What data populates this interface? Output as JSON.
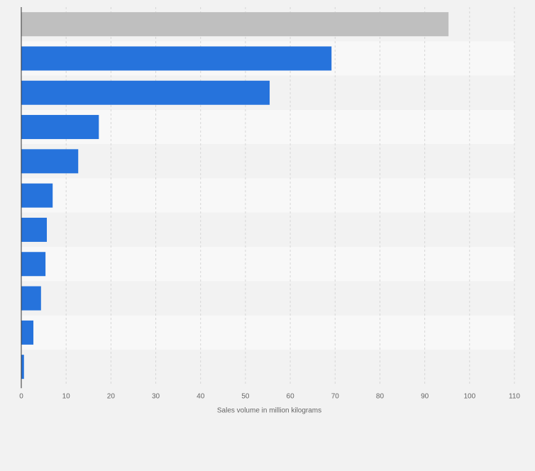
{
  "chart_data": {
    "type": "bar",
    "orientation": "horizontal",
    "title": "",
    "xlabel": "Sales volume in million kilograms",
    "ylabel": "",
    "xlim": [
      0,
      110
    ],
    "x_ticks": [
      "0",
      "10",
      "20",
      "30",
      "40",
      "50",
      "60",
      "70",
      "80",
      "90",
      "100",
      "110"
    ],
    "grid": true,
    "categories": [
      "",
      "",
      "",
      "",
      "",
      "",
      "",
      "",
      "",
      "",
      ""
    ],
    "values": [
      95.3,
      69.2,
      55.4,
      17.3,
      12.7,
      7.0,
      5.7,
      5.4,
      4.4,
      2.7,
      0.6
    ],
    "bar_colors": [
      "#bfbfbf",
      "#2673dc",
      "#2673dc",
      "#2673dc",
      "#2673dc",
      "#2673dc",
      "#2673dc",
      "#2673dc",
      "#2673dc",
      "#2673dc",
      "#2673dc"
    ]
  },
  "colors": {
    "background": "#f2f2f2",
    "band_light": "#f8f8f8",
    "band_dark": "#f2f2f2",
    "grid": "#d6d6d6",
    "axis": "#333333",
    "tick_text": "#666666"
  }
}
